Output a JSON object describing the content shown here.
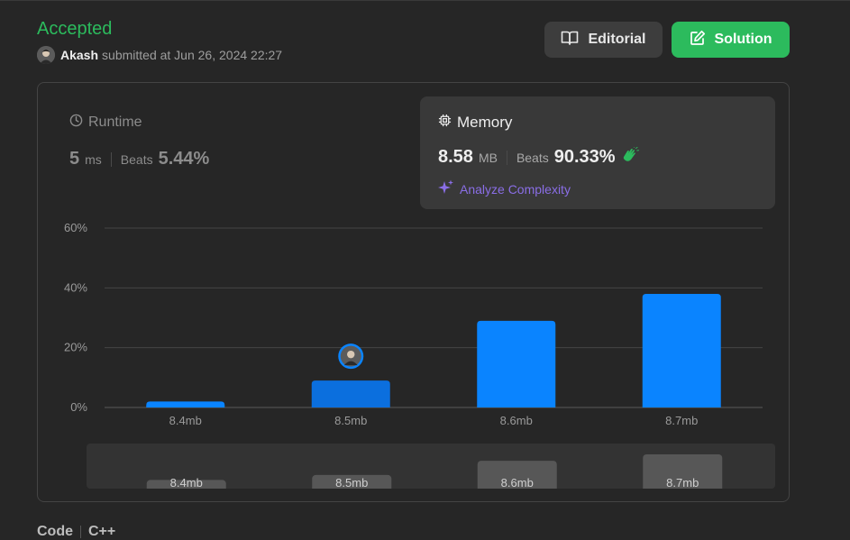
{
  "submission": {
    "status": "Accepted",
    "user": "Akash",
    "submitted_text": "submitted at Jun 26, 2024 22:27"
  },
  "buttons": {
    "editorial": "Editorial",
    "solution": "Solution"
  },
  "runtime": {
    "label": "Runtime",
    "value": "5",
    "unit": "ms",
    "beats_label": "Beats",
    "beats_value": "5.44%"
  },
  "memory": {
    "label": "Memory",
    "value": "8.58",
    "unit": "MB",
    "beats_label": "Beats",
    "beats_value": "90.33%",
    "analyze": "Analyze Complexity"
  },
  "chart_data": {
    "type": "bar",
    "categories": [
      "8.4mb",
      "8.5mb",
      "8.6mb",
      "8.7mb"
    ],
    "values": [
      2,
      9,
      29,
      38
    ],
    "y_ticks": [
      "0%",
      "20%",
      "40%",
      "60%"
    ],
    "ylim": [
      0,
      60
    ],
    "highlight_index": 1,
    "grid": true,
    "mini_values": [
      2,
      9,
      29,
      38
    ]
  },
  "colors": {
    "accepted": "#2cbb5d",
    "bar": "#0a84ff",
    "bar_highlight": "#0b6fde",
    "mini_bar": "#575757"
  },
  "cutoff_tabs": [
    "Code",
    "C++"
  ]
}
